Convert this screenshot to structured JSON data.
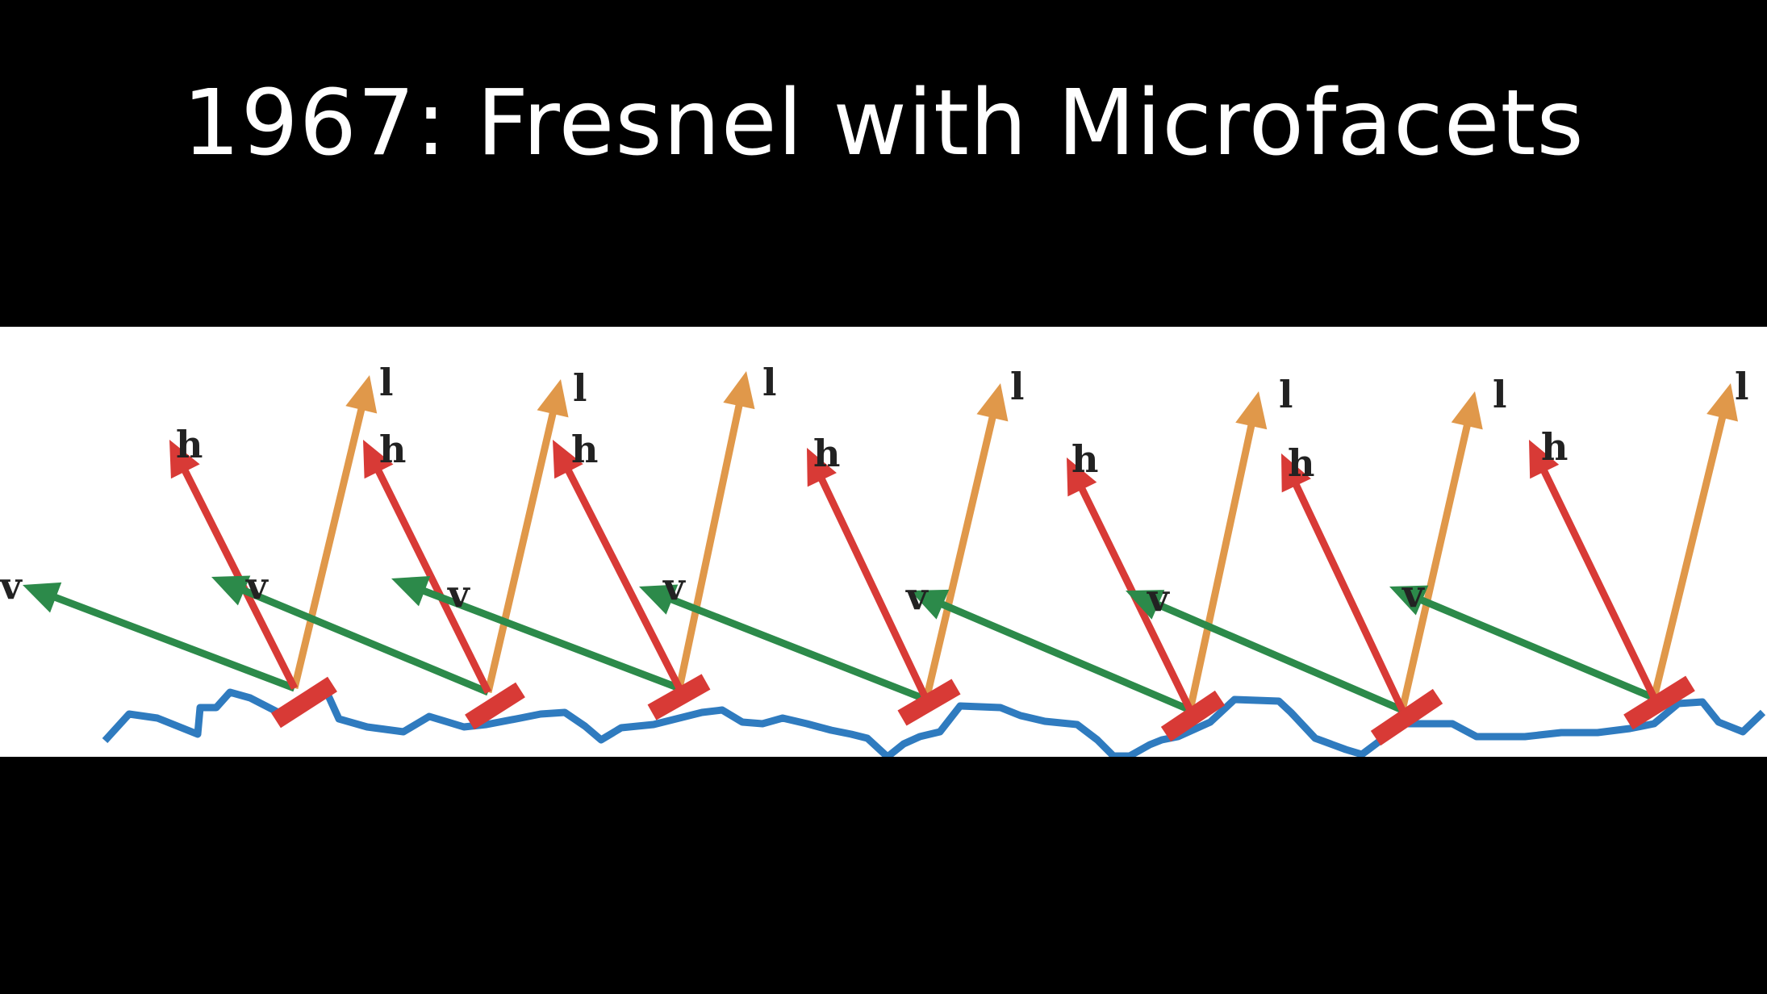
{
  "slide": {
    "title": "1967: Fresnel with Microfacets"
  },
  "diagram": {
    "labels": {
      "view": "v",
      "half": "h",
      "light": "l"
    },
    "colors": {
      "background": "#ffffff",
      "surface": "#2f7bbf",
      "view_vector": "#2c8a4a",
      "half_vector": "#d83a36",
      "light_vector": "#e0984a",
      "facet": "#d83a36"
    },
    "microfacet_count": 7
  }
}
